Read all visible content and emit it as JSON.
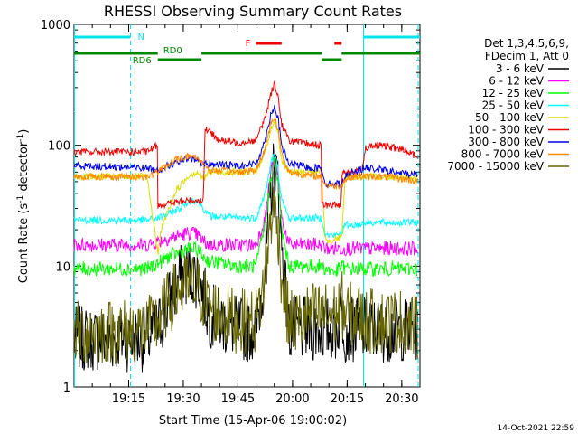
{
  "chart_data": {
    "type": "line",
    "title": "RHESSI Observing Summary Count Rates",
    "xlabel": "Start Time (15-Apr-06 19:00:02)",
    "ylabel_main": "Count Rate (s",
    "ylabel_sup1": "-1",
    "ylabel_mid": " detector",
    "ylabel_sup2": "-1",
    "ylabel_end": ")",
    "y_scale": "log",
    "ylim": [
      1,
      1000
    ],
    "xlim_minutes": [
      0,
      95
    ],
    "x_ticks": [
      {
        "minutes": 15,
        "label": "19:15"
      },
      {
        "minutes": 30,
        "label": "19:30"
      },
      {
        "minutes": 45,
        "label": "19:45"
      },
      {
        "minutes": 60,
        "label": "20:00"
      },
      {
        "minutes": 75,
        "label": "20:15"
      },
      {
        "minutes": 90,
        "label": "20:30"
      }
    ],
    "y_ticks": [
      {
        "value": 1,
        "label": "1"
      },
      {
        "value": 10,
        "label": "10"
      },
      {
        "value": 100,
        "label": "100"
      },
      {
        "value": 1000,
        "label": "1000"
      }
    ],
    "legend_header": [
      "Det 1,3,4,5,6,9,",
      "FDecim 1, Att 0"
    ],
    "legend_position": "right",
    "timestamp": "14-Oct-2021 22:59",
    "night_boundaries_minutes": [
      15.5,
      79.5,
      94.5
    ],
    "flag_labels": {
      "night": "N",
      "flare": "F",
      "rd0": "RD0",
      "rd6": "RD6"
    },
    "flags": {
      "night": {
        "color": "#00e5ee",
        "segments": [
          [
            0,
            15.5
          ],
          [
            79.5,
            95
          ]
        ]
      },
      "flare": {
        "color": "#ee0000",
        "segments": [
          [
            50,
            57
          ],
          [
            71.5,
            73.5
          ]
        ]
      },
      "rd0": {
        "color": "#008800",
        "segments": [
          [
            0,
            23
          ],
          [
            35,
            68
          ],
          [
            73.5,
            95
          ]
        ]
      },
      "rd6": {
        "color": "#008800",
        "segments": [
          [
            23,
            35
          ],
          [
            68,
            73.5
          ]
        ]
      }
    },
    "series": [
      {
        "name": "3 - 6 keV",
        "color": "#000000",
        "x": [
          0,
          20,
          23,
          26,
          29,
          32,
          34,
          35.5,
          37,
          45,
          50,
          52.5,
          54,
          55,
          56,
          57,
          59,
          62,
          65,
          68,
          69,
          72,
          73.5,
          74.5,
          76,
          78,
          80,
          84,
          88,
          91,
          94.5
        ],
        "y": [
          2.5,
          2.5,
          3,
          5,
          8,
          9,
          8,
          6,
          4,
          3,
          3,
          10,
          40,
          70,
          50,
          15,
          3,
          3,
          3,
          3,
          3,
          3,
          4,
          3,
          3,
          3,
          3,
          3,
          3,
          3,
          3
        ]
      },
      {
        "name": "6 - 12 keV",
        "color": "#ff00ff",
        "x": [
          0,
          20,
          23,
          26,
          29,
          32,
          34,
          35.5,
          37,
          45,
          50,
          52.5,
          54,
          55,
          56,
          57,
          59,
          62,
          65,
          68,
          69,
          72,
          73.5,
          74.5,
          76,
          78,
          80,
          84,
          88,
          91,
          94.5
        ],
        "y": [
          15,
          15,
          16,
          17,
          18,
          19,
          18,
          16,
          15,
          15,
          15,
          25,
          60,
          75,
          55,
          25,
          15,
          15,
          15,
          15,
          14,
          14,
          14,
          14,
          14,
          14,
          14,
          14,
          14,
          14,
          14
        ]
      },
      {
        "name": "12 - 25 keV",
        "color": "#00ff00",
        "x": [
          0,
          20,
          23,
          26,
          29,
          32,
          34,
          35.5,
          37,
          45,
          50,
          52.5,
          54,
          55,
          56,
          57,
          59,
          62,
          65,
          68,
          69,
          72,
          73.5,
          74.5,
          76,
          78,
          80,
          84,
          88,
          91,
          94.5
        ],
        "y": [
          9.5,
          9.5,
          10.5,
          12,
          13,
          14,
          13.5,
          12,
          11,
          10,
          10,
          22,
          55,
          75,
          50,
          20,
          10,
          10,
          10,
          10,
          9.5,
          9,
          10,
          9.5,
          9.5,
          9.5,
          9.5,
          9.5,
          9.5,
          9.5,
          9.5
        ]
      },
      {
        "name": "25 - 50 keV",
        "color": "#00ffff",
        "x": [
          0,
          20,
          23,
          26,
          29,
          32,
          34,
          35.5,
          37,
          45,
          50,
          52.5,
          54,
          55,
          56,
          57,
          59,
          62,
          65,
          68,
          69,
          72,
          73.5,
          74.5,
          76,
          78,
          80,
          84,
          88,
          91,
          94.5
        ],
        "y": [
          24,
          24,
          25,
          27,
          30,
          35,
          35,
          30,
          26,
          25,
          25,
          40,
          70,
          85,
          65,
          35,
          25,
          25,
          25,
          25,
          18,
          18,
          19,
          22,
          22,
          22,
          23,
          23,
          23,
          23,
          23
        ]
      },
      {
        "name": "50 - 100 keV",
        "color": "#dddd00",
        "x": [
          0,
          20,
          23,
          24,
          26,
          28,
          30,
          32,
          34,
          35.5,
          37,
          45,
          50,
          52.5,
          54,
          55,
          56,
          57,
          59,
          62,
          65,
          68,
          69,
          72,
          73.5,
          74.5,
          76,
          78,
          80,
          84,
          88,
          91,
          94.5
        ],
        "y": [
          55,
          55,
          13,
          20,
          30,
          42,
          50,
          58,
          60,
          52,
          60,
          60,
          60,
          90,
          135,
          155,
          130,
          75,
          60,
          60,
          60,
          60,
          16,
          17,
          17,
          55,
          55,
          55,
          55,
          55,
          55,
          55,
          52
        ]
      },
      {
        "name": "100 - 300 keV",
        "color": "#ee0000",
        "x": [
          0,
          20,
          22.9,
          23,
          26,
          29,
          32,
          34,
          35.5,
          36,
          37,
          40,
          45,
          50,
          52.5,
          54,
          55,
          56,
          57,
          59,
          62,
          65,
          67.9,
          68,
          72,
          73.4,
          73.5,
          76,
          79,
          80,
          84,
          88,
          91,
          94.5
        ],
        "y": [
          88,
          88,
          100,
          32,
          33,
          34,
          35,
          35,
          35,
          140,
          130,
          110,
          105,
          110,
          170,
          260,
          330,
          260,
          150,
          110,
          105,
          102,
          100,
          32,
          32,
          32,
          60,
          60,
          60,
          95,
          100,
          95,
          90,
          80
        ]
      },
      {
        "name": "300 - 800 keV",
        "color": "#0000ee",
        "x": [
          0,
          20,
          23,
          26,
          29,
          32,
          34,
          35.5,
          37,
          45,
          50,
          52.5,
          54,
          55,
          56,
          57,
          59,
          62,
          65,
          68,
          69,
          72,
          73.5,
          74.5,
          76,
          78,
          80,
          84,
          88,
          91,
          94.5
        ],
        "y": [
          68,
          65,
          62,
          68,
          73,
          78,
          75,
          70,
          70,
          68,
          70,
          110,
          180,
          210,
          170,
          100,
          70,
          68,
          65,
          65,
          48,
          48,
          48,
          55,
          60,
          62,
          65,
          63,
          60,
          58,
          58
        ]
      },
      {
        "name": "800 - 7000 keV",
        "color": "#ff8800",
        "x": [
          0,
          20,
          23,
          26,
          29,
          32,
          34,
          35.5,
          37,
          45,
          50,
          52.5,
          54,
          55,
          56,
          57,
          59,
          62,
          65,
          68,
          69,
          72,
          73.5,
          74.5,
          76,
          78,
          80,
          84,
          88,
          91,
          94.5
        ],
        "y": [
          55,
          55,
          60,
          70,
          78,
          82,
          78,
          72,
          62,
          60,
          62,
          95,
          150,
          170,
          140,
          85,
          60,
          58,
          56,
          55,
          47,
          46,
          47,
          52,
          55,
          55,
          55,
          55,
          54,
          52,
          50
        ]
      },
      {
        "name": "7000 - 15000 keV",
        "color": "#666600",
        "x": [
          0,
          20,
          23,
          26,
          29,
          32,
          34,
          35.5,
          37,
          45,
          50,
          52.5,
          54,
          55,
          56,
          57,
          59,
          62,
          65,
          68,
          69,
          72,
          73.5,
          74.5,
          76,
          78,
          80,
          84,
          88,
          91,
          94.5
        ],
        "y": [
          2.8,
          3,
          3.5,
          5,
          6.5,
          7,
          6.5,
          5.5,
          4.5,
          3.5,
          3.5,
          8,
          25,
          30,
          22,
          8,
          3.5,
          3.5,
          4,
          4,
          4,
          4,
          5,
          4,
          4,
          4,
          3.5,
          3.5,
          3.5,
          3.5,
          3
        ]
      }
    ]
  }
}
